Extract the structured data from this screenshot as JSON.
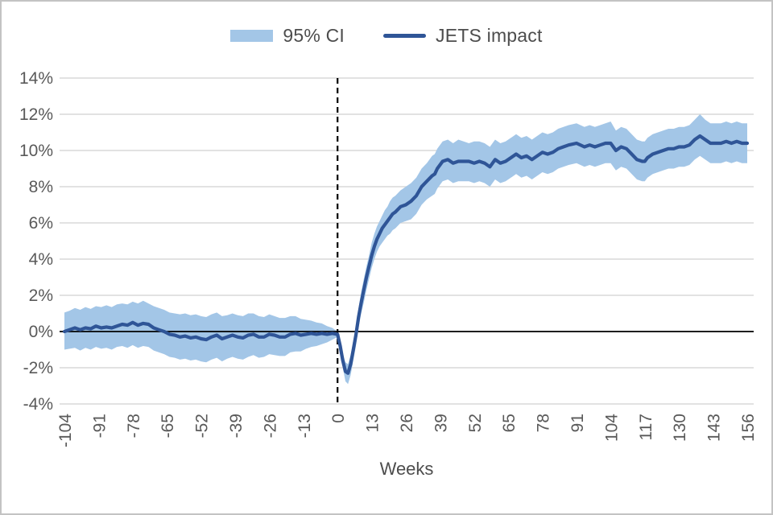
{
  "legend": {
    "ci_label": "95% CI",
    "impact_label": "JETS impact"
  },
  "x_axis_title": "Weeks",
  "colors": {
    "band": "#A3C6E7",
    "line": "#2F5597",
    "gridline": "#D9D9D9",
    "axis_text": "#595959",
    "zero_line": "#000000",
    "event_line": "#000000"
  },
  "chart_data": {
    "type": "line",
    "title": "",
    "xlabel": "Weeks",
    "ylabel": "",
    "xlim": [
      -104,
      156
    ],
    "ylim": [
      -4,
      14
    ],
    "grid": "horizontal",
    "legend_position": "top-center",
    "x_ticks": [
      -104,
      -91,
      -78,
      -65,
      -52,
      -39,
      -26,
      -13,
      0,
      13,
      26,
      39,
      52,
      65,
      78,
      91,
      104,
      117,
      130,
      143,
      156
    ],
    "y_ticks": [
      14,
      12,
      10,
      8,
      6,
      4,
      2,
      0,
      -2,
      -4
    ],
    "y_tick_suffix": "%",
    "reference_lines": {
      "vertical_dashed_at_x": 0,
      "horizontal_solid_at_y": 0
    },
    "series": [
      {
        "name": "JETS impact",
        "type": "line",
        "color": "#2F5597"
      },
      {
        "name": "95% CI",
        "type": "band",
        "color": "#A3C6E7"
      }
    ],
    "points_format": [
      "week",
      "ci_lower_pct",
      "impact_pct",
      "ci_upper_pct"
    ],
    "points": [
      [
        -104,
        -1.0,
        0.0,
        1.05
      ],
      [
        -102,
        -0.95,
        0.1,
        1.15
      ],
      [
        -100,
        -0.9,
        0.2,
        1.3
      ],
      [
        -98,
        -1.05,
        0.1,
        1.2
      ],
      [
        -96,
        -0.9,
        0.2,
        1.35
      ],
      [
        -94,
        -1.0,
        0.15,
        1.25
      ],
      [
        -92,
        -0.85,
        0.3,
        1.4
      ],
      [
        -90,
        -0.95,
        0.2,
        1.35
      ],
      [
        -88,
        -0.9,
        0.25,
        1.45
      ],
      [
        -86,
        -1.0,
        0.2,
        1.35
      ],
      [
        -84,
        -0.85,
        0.3,
        1.5
      ],
      [
        -82,
        -0.8,
        0.4,
        1.55
      ],
      [
        -80,
        -0.9,
        0.35,
        1.5
      ],
      [
        -78,
        -0.75,
        0.5,
        1.65
      ],
      [
        -76,
        -0.9,
        0.35,
        1.55
      ],
      [
        -74,
        -0.8,
        0.45,
        1.7
      ],
      [
        -72,
        -0.85,
        0.4,
        1.55
      ],
      [
        -70,
        -1.05,
        0.2,
        1.4
      ],
      [
        -68,
        -1.15,
        0.1,
        1.3
      ],
      [
        -66,
        -1.25,
        0.0,
        1.2
      ],
      [
        -64,
        -1.4,
        -0.15,
        1.05
      ],
      [
        -62,
        -1.45,
        -0.2,
        1.0
      ],
      [
        -60,
        -1.55,
        -0.3,
        0.95
      ],
      [
        -58,
        -1.5,
        -0.25,
        1.0
      ],
      [
        -56,
        -1.6,
        -0.35,
        0.9
      ],
      [
        -54,
        -1.55,
        -0.3,
        0.95
      ],
      [
        -52,
        -1.65,
        -0.4,
        0.85
      ],
      [
        -50,
        -1.7,
        -0.45,
        0.8
      ],
      [
        -48,
        -1.55,
        -0.3,
        0.95
      ],
      [
        -46,
        -1.45,
        -0.2,
        1.05
      ],
      [
        -44,
        -1.65,
        -0.4,
        0.85
      ],
      [
        -42,
        -1.5,
        -0.3,
        0.9
      ],
      [
        -40,
        -1.4,
        -0.2,
        1.0
      ],
      [
        -38,
        -1.5,
        -0.3,
        0.9
      ],
      [
        -36,
        -1.55,
        -0.35,
        0.85
      ],
      [
        -34,
        -1.4,
        -0.2,
        1.0
      ],
      [
        -32,
        -1.3,
        -0.15,
        1.0
      ],
      [
        -30,
        -1.45,
        -0.3,
        0.85
      ],
      [
        -28,
        -1.4,
        -0.3,
        0.8
      ],
      [
        -26,
        -1.25,
        -0.15,
        0.95
      ],
      [
        -24,
        -1.3,
        -0.2,
        0.85
      ],
      [
        -22,
        -1.35,
        -0.3,
        0.75
      ],
      [
        -20,
        -1.35,
        -0.3,
        0.75
      ],
      [
        -18,
        -1.15,
        -0.15,
        0.85
      ],
      [
        -16,
        -1.1,
        -0.1,
        0.85
      ],
      [
        -14,
        -1.1,
        -0.2,
        0.7
      ],
      [
        -12,
        -0.95,
        -0.15,
        0.65
      ],
      [
        -10,
        -0.85,
        -0.1,
        0.6
      ],
      [
        -8,
        -0.8,
        -0.15,
        0.5
      ],
      [
        -6,
        -0.7,
        -0.1,
        0.45
      ],
      [
        -4,
        -0.6,
        -0.15,
        0.3
      ],
      [
        -2,
        -0.45,
        -0.1,
        0.2
      ],
      [
        0,
        -0.3,
        -0.15,
        0.0
      ],
      [
        1,
        -1.1,
        -0.8,
        -0.5
      ],
      [
        2,
        -2.0,
        -1.6,
        -1.2
      ],
      [
        3,
        -2.75,
        -2.2,
        -1.7
      ],
      [
        4,
        -2.9,
        -2.3,
        -1.8
      ],
      [
        5,
        -2.4,
        -1.8,
        -1.3
      ],
      [
        6,
        -1.6,
        -1.0,
        -0.5
      ],
      [
        7,
        -0.8,
        -0.2,
        0.3
      ],
      [
        8,
        0.2,
        0.8,
        1.3
      ],
      [
        9,
        1.0,
        1.6,
        2.2
      ],
      [
        10,
        1.6,
        2.3,
        2.9
      ],
      [
        11,
        2.3,
        3.0,
        3.6
      ],
      [
        12,
        2.9,
        3.6,
        4.2
      ],
      [
        13,
        3.5,
        4.2,
        4.9
      ],
      [
        14,
        4.0,
        4.7,
        5.4
      ],
      [
        15,
        4.4,
        5.1,
        5.8
      ],
      [
        16,
        4.7,
        5.4,
        6.1
      ],
      [
        17,
        4.9,
        5.7,
        6.4
      ],
      [
        18,
        5.1,
        5.9,
        6.7
      ],
      [
        19,
        5.3,
        6.1,
        6.9
      ],
      [
        20,
        5.4,
        6.3,
        7.2
      ],
      [
        21,
        5.6,
        6.5,
        7.4
      ],
      [
        22,
        5.7,
        6.6,
        7.5
      ],
      [
        24,
        6.0,
        6.9,
        7.8
      ],
      [
        26,
        6.1,
        7.0,
        8.0
      ],
      [
        28,
        6.2,
        7.2,
        8.2
      ],
      [
        30,
        6.5,
        7.5,
        8.5
      ],
      [
        32,
        7.0,
        8.0,
        9.0
      ],
      [
        34,
        7.3,
        8.3,
        9.3
      ],
      [
        36,
        7.5,
        8.6,
        9.7
      ],
      [
        37,
        7.6,
        8.7,
        9.8
      ],
      [
        38,
        7.9,
        9.0,
        10.1
      ],
      [
        39,
        8.1,
        9.2,
        10.3
      ],
      [
        40,
        8.3,
        9.4,
        10.5
      ],
      [
        42,
        8.4,
        9.5,
        10.6
      ],
      [
        44,
        8.2,
        9.3,
        10.4
      ],
      [
        46,
        8.3,
        9.4,
        10.6
      ],
      [
        48,
        8.3,
        9.4,
        10.5
      ],
      [
        50,
        8.3,
        9.4,
        10.4
      ],
      [
        52,
        8.2,
        9.3,
        10.5
      ],
      [
        54,
        8.3,
        9.4,
        10.5
      ],
      [
        56,
        8.2,
        9.3,
        10.4
      ],
      [
        58,
        8.0,
        9.1,
        10.2
      ],
      [
        60,
        8.4,
        9.5,
        10.6
      ],
      [
        62,
        8.2,
        9.3,
        10.4
      ],
      [
        64,
        8.3,
        9.4,
        10.5
      ],
      [
        66,
        8.5,
        9.6,
        10.7
      ],
      [
        68,
        8.7,
        9.8,
        10.9
      ],
      [
        70,
        8.5,
        9.6,
        10.7
      ],
      [
        72,
        8.6,
        9.7,
        10.8
      ],
      [
        74,
        8.4,
        9.5,
        10.6
      ],
      [
        76,
        8.6,
        9.7,
        10.8
      ],
      [
        78,
        8.8,
        9.9,
        11.0
      ],
      [
        80,
        8.7,
        9.8,
        10.9
      ],
      [
        82,
        8.8,
        9.9,
        11.0
      ],
      [
        84,
        9.0,
        10.1,
        11.2
      ],
      [
        86,
        9.1,
        10.2,
        11.3
      ],
      [
        88,
        9.2,
        10.3,
        11.4
      ],
      [
        91,
        9.3,
        10.4,
        11.5
      ],
      [
        94,
        9.1,
        10.2,
        11.3
      ],
      [
        96,
        9.2,
        10.3,
        11.4
      ],
      [
        98,
        9.1,
        10.2,
        11.3
      ],
      [
        100,
        9.2,
        10.3,
        11.4
      ],
      [
        102,
        9.3,
        10.4,
        11.5
      ],
      [
        104,
        9.3,
        10.4,
        11.6
      ],
      [
        106,
        8.9,
        10.0,
        11.1
      ],
      [
        108,
        9.1,
        10.2,
        11.3
      ],
      [
        110,
        9.0,
        10.1,
        11.2
      ],
      [
        112,
        8.7,
        9.8,
        10.9
      ],
      [
        114,
        8.4,
        9.5,
        10.6
      ],
      [
        116,
        8.3,
        9.4,
        10.5
      ],
      [
        117,
        8.3,
        9.4,
        10.5
      ],
      [
        118,
        8.5,
        9.6,
        10.7
      ],
      [
        120,
        8.7,
        9.8,
        10.9
      ],
      [
        122,
        8.8,
        9.9,
        11.0
      ],
      [
        124,
        8.9,
        10.0,
        11.1
      ],
      [
        126,
        9.0,
        10.1,
        11.2
      ],
      [
        128,
        9.0,
        10.1,
        11.2
      ],
      [
        130,
        9.1,
        10.2,
        11.3
      ],
      [
        132,
        9.1,
        10.2,
        11.3
      ],
      [
        134,
        9.2,
        10.3,
        11.4
      ],
      [
        136,
        9.5,
        10.6,
        11.7
      ],
      [
        138,
        9.7,
        10.8,
        12.0
      ],
      [
        140,
        9.5,
        10.6,
        11.7
      ],
      [
        142,
        9.3,
        10.4,
        11.5
      ],
      [
        144,
        9.3,
        10.4,
        11.5
      ],
      [
        146,
        9.3,
        10.4,
        11.5
      ],
      [
        148,
        9.4,
        10.5,
        11.6
      ],
      [
        150,
        9.3,
        10.4,
        11.5
      ],
      [
        152,
        9.4,
        10.5,
        11.6
      ],
      [
        154,
        9.3,
        10.4,
        11.5
      ],
      [
        156,
        9.3,
        10.4,
        11.5
      ]
    ]
  }
}
